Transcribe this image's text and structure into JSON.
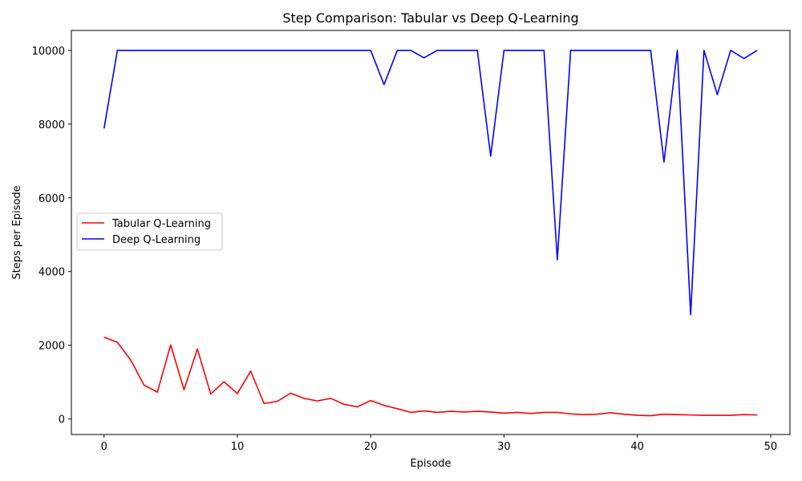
{
  "chart_data": {
    "type": "line",
    "title": "Step Comparison: Tabular vs Deep Q-Learning",
    "xlabel": "Episode",
    "ylabel": "Steps per Episode",
    "xlim": [
      -2.45,
      51.45
    ],
    "ylim": [
      -420,
      10540
    ],
    "xticks": [
      0,
      10,
      20,
      30,
      40,
      50
    ],
    "yticks": [
      0,
      2000,
      4000,
      6000,
      8000,
      10000
    ],
    "grid": false,
    "legend_position": "center-left",
    "x": [
      0,
      1,
      2,
      3,
      4,
      5,
      6,
      7,
      8,
      9,
      10,
      11,
      12,
      13,
      14,
      15,
      16,
      17,
      18,
      19,
      20,
      21,
      22,
      23,
      24,
      25,
      26,
      27,
      28,
      29,
      30,
      31,
      32,
      33,
      34,
      35,
      36,
      37,
      38,
      39,
      40,
      41,
      42,
      43,
      44,
      45,
      46,
      47,
      48,
      49
    ],
    "series": [
      {
        "name": "Tabular Q-Learning",
        "color": "#ff0000",
        "values": [
          2220,
          2080,
          1600,
          920,
          730,
          2010,
          790,
          1900,
          680,
          1010,
          690,
          1300,
          420,
          480,
          700,
          560,
          490,
          560,
          400,
          330,
          500,
          370,
          280,
          180,
          220,
          180,
          210,
          190,
          210,
          190,
          160,
          180,
          150,
          180,
          180,
          140,
          120,
          130,
          170,
          130,
          100,
          90,
          130,
          120,
          110,
          100,
          100,
          100,
          120,
          110
        ]
      },
      {
        "name": "Deep Q-Learning",
        "color": "#0000ff",
        "values": [
          7880,
          10000,
          10000,
          10000,
          10000,
          10000,
          10000,
          10000,
          10000,
          10000,
          10000,
          10000,
          10000,
          10000,
          10000,
          10000,
          10000,
          10000,
          10000,
          10000,
          10000,
          9070,
          10000,
          10000,
          9800,
          10000,
          10000,
          10000,
          10000,
          7130,
          10000,
          10000,
          10000,
          10000,
          4320,
          10000,
          10000,
          10000,
          10000,
          10000,
          10000,
          10000,
          6970,
          10000,
          2830,
          10000,
          8800,
          10000,
          9780,
          10000
        ]
      }
    ]
  }
}
